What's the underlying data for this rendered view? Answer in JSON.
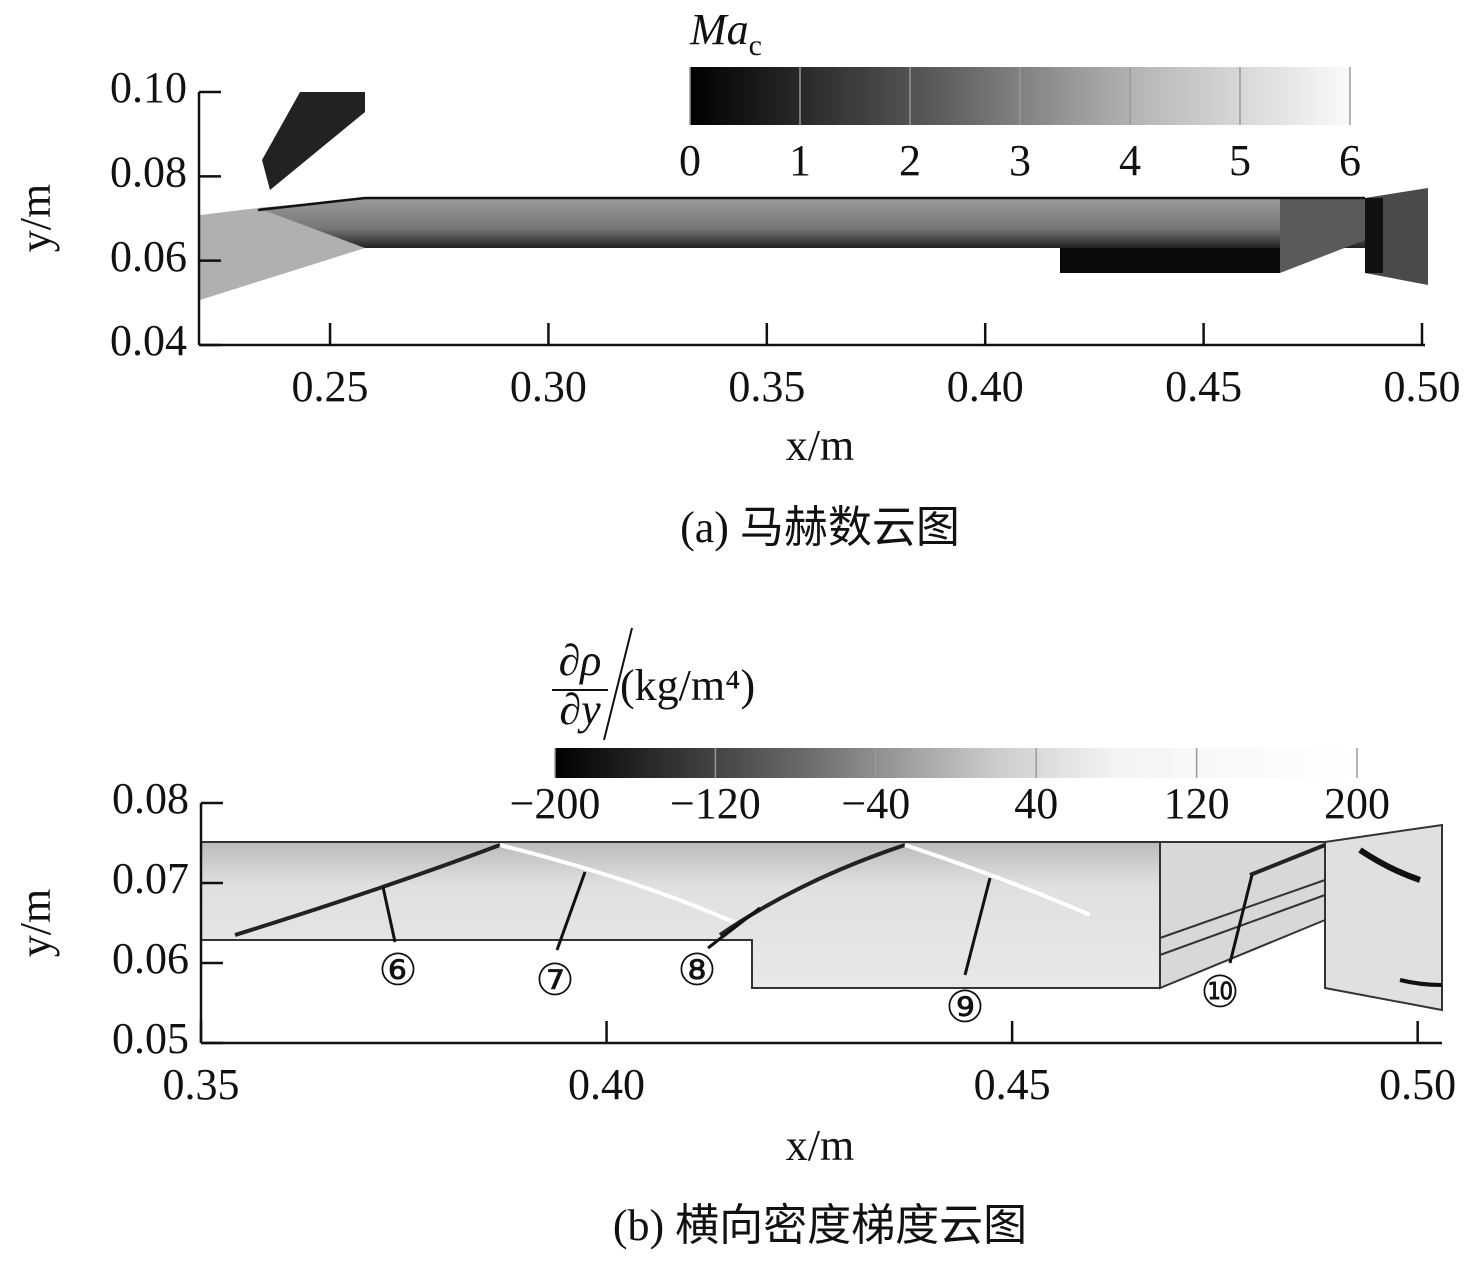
{
  "chart_data": [
    {
      "type": "contour",
      "caption": "(a) 马赫数云图",
      "xlabel": "x/m",
      "ylabel": "y/m",
      "xlim": [
        0.22,
        0.5
      ],
      "ylim": [
        0.04,
        0.1
      ],
      "xticks": [
        0.25,
        {
          "value": 0.3,
          "label": "0.30"
        },
        0.35,
        {
          "value": 0.4,
          "label": "0.40"
        },
        0.45,
        {
          "value": 0.5,
          "label": "0.50"
        }
      ],
      "yticks": [
        0.04,
        0.06,
        0.08,
        {
          "value": 0.1,
          "label": "0.10"
        }
      ],
      "colorbar": {
        "label": "Ma",
        "label_sub": "c",
        "lim": [
          0,
          6
        ],
        "ticks": [
          0,
          1,
          2,
          3,
          4,
          5,
          6
        ]
      }
    },
    {
      "type": "contour",
      "caption": "(b) 横向密度梯度云图",
      "xlabel": "x/m",
      "ylabel": "y/m",
      "xlim": [
        0.35,
        0.503
      ],
      "ylim": [
        0.05,
        0.08
      ],
      "xticks": [
        0.35,
        {
          "value": 0.4,
          "label": "0.40"
        },
        0.45,
        {
          "value": 0.5,
          "label": "0.50"
        }
      ],
      "yticks": [
        0.05,
        0.06,
        0.07,
        0.08
      ],
      "colorbar": {
        "label_num": "∂ρ",
        "label_den": "∂y",
        "label_unit": "(kg/m⁴)",
        "lim": [
          -200,
          200
        ],
        "ticks": [
          {
            "value": -200,
            "label": "−200"
          },
          {
            "value": -120,
            "label": "−120"
          },
          {
            "value": -40,
            "label": "−40"
          },
          40,
          120,
          200
        ]
      },
      "annotations": [
        "⑥",
        "⑦",
        "⑧",
        "⑨",
        "⑩"
      ]
    }
  ]
}
